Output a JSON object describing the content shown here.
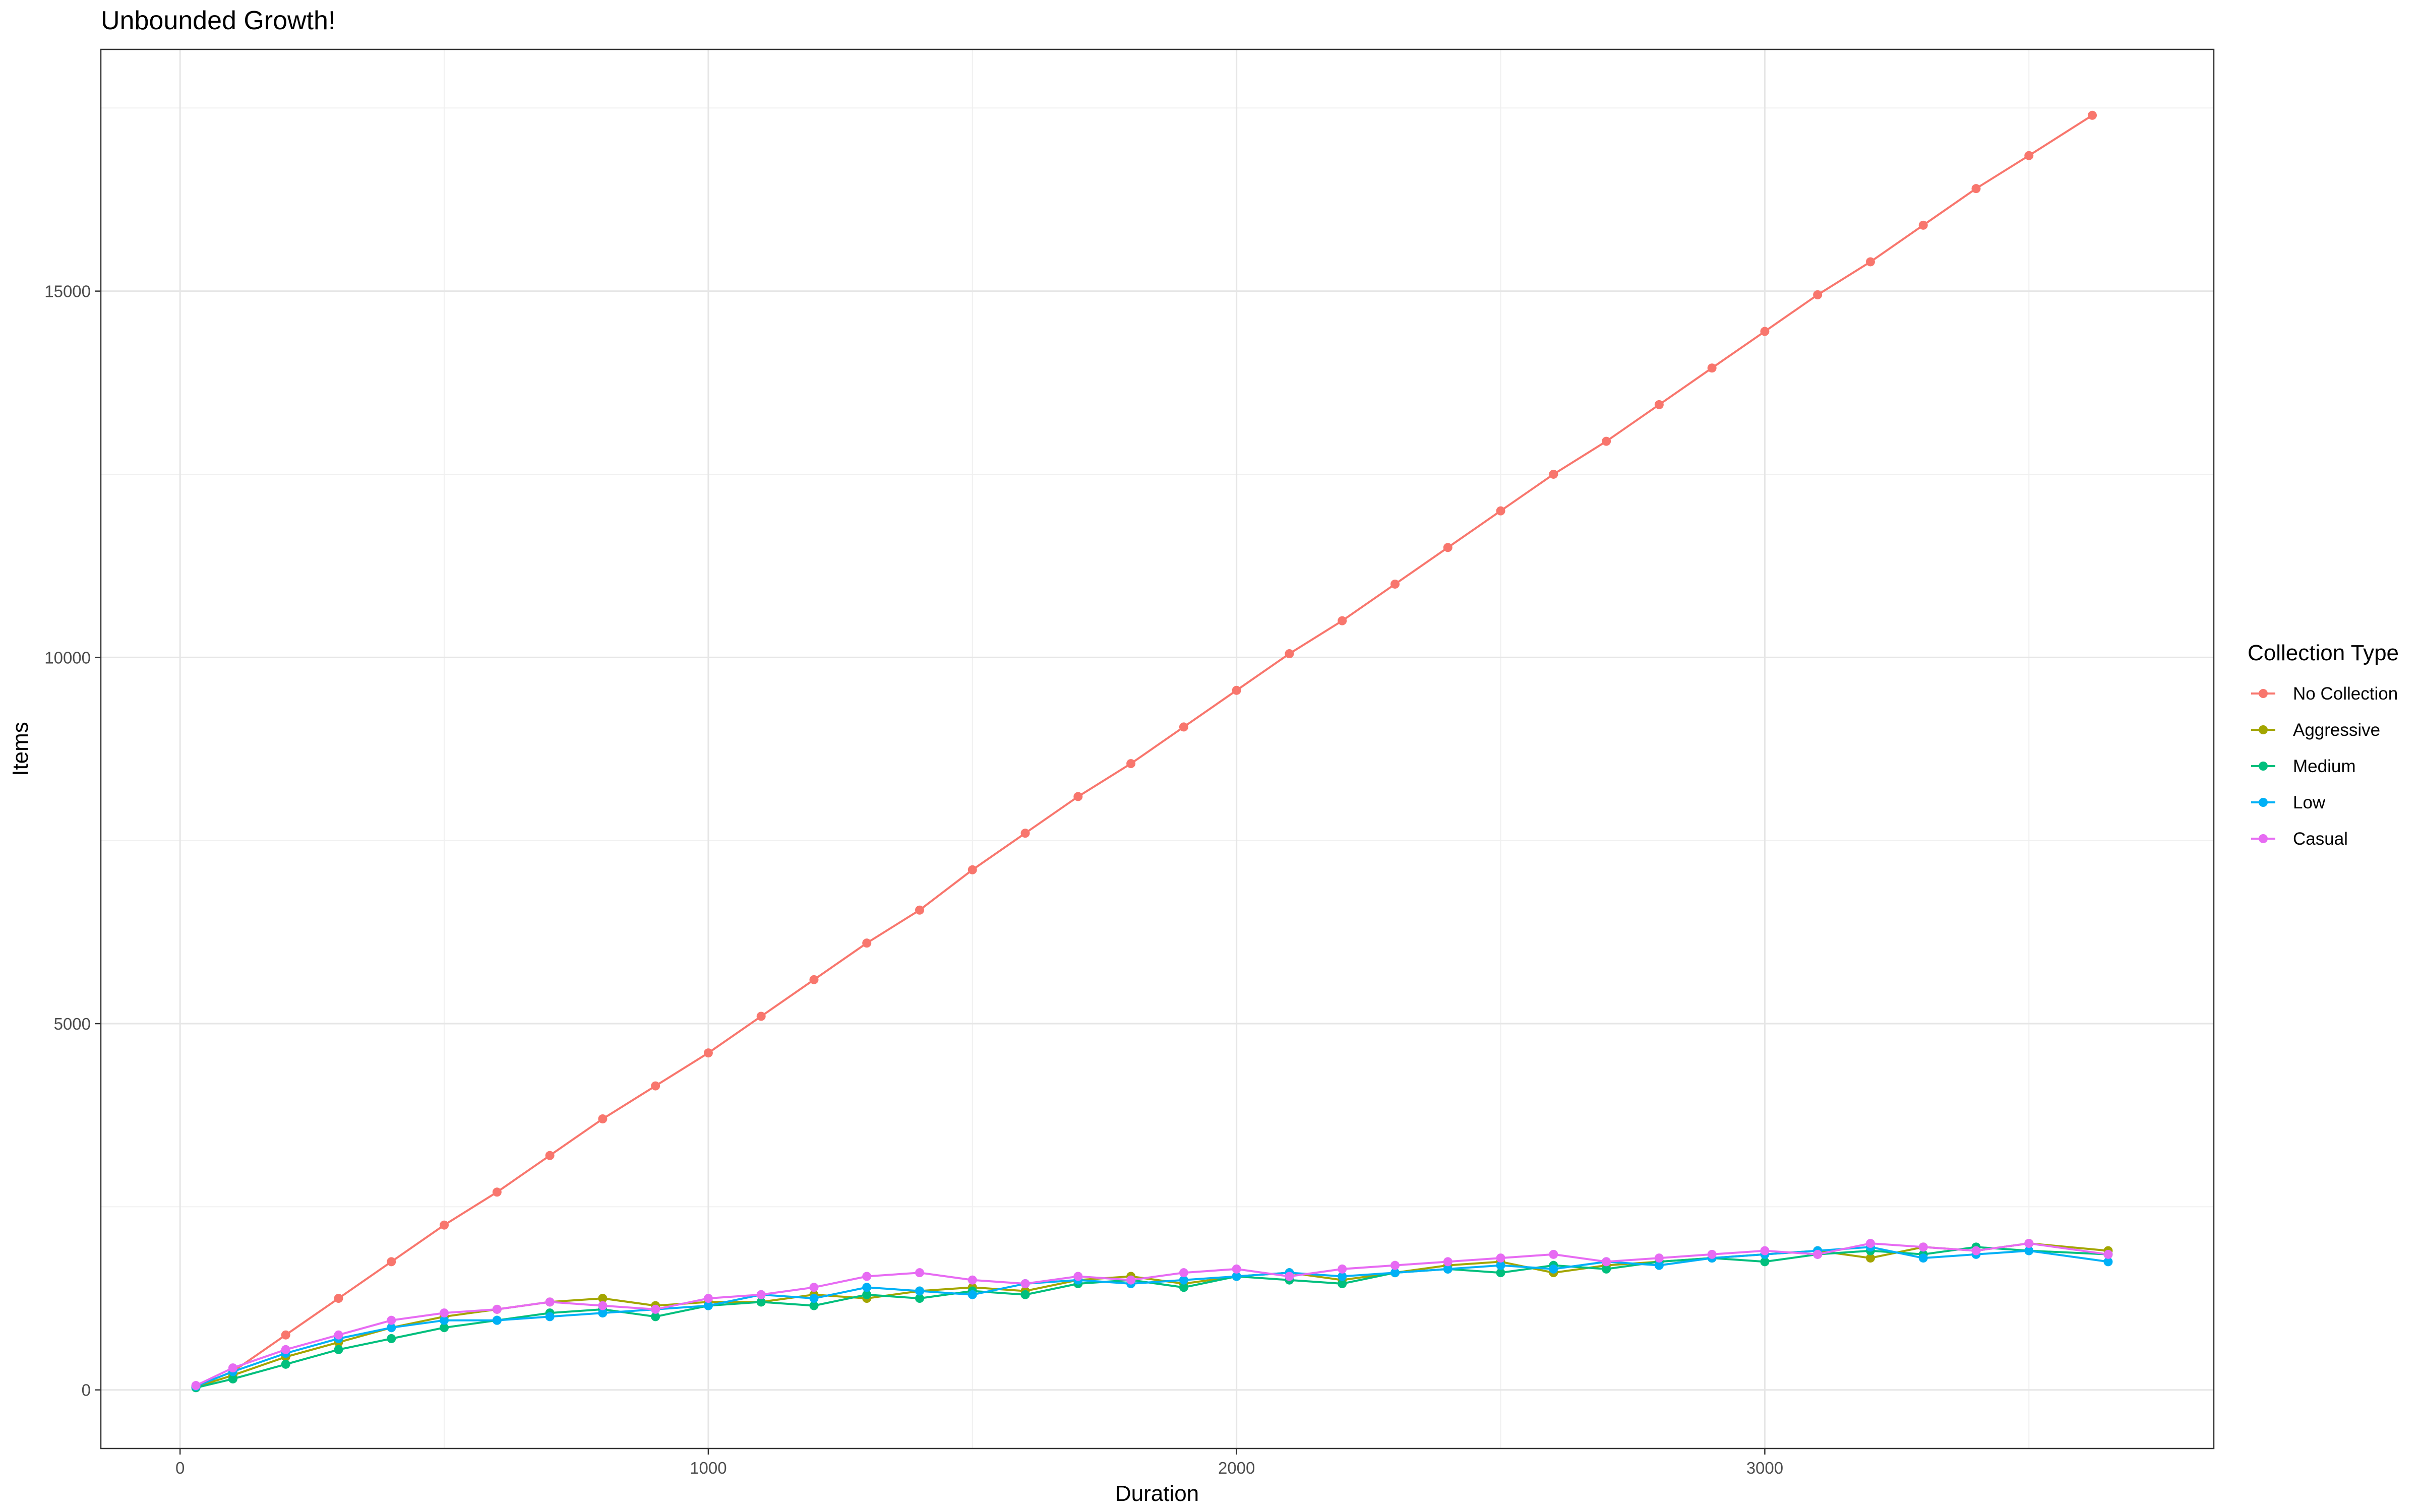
{
  "chart_data": {
    "type": "line",
    "title": "Unbounded Growth!",
    "xlabel": "Duration",
    "ylabel": "Items",
    "xlim": [
      -150,
      3850
    ],
    "ylim": [
      -800,
      18300
    ],
    "x_ticks": [
      0,
      1000,
      2000,
      3000
    ],
    "x_tick_labels": [
      "0",
      "1000",
      "2000",
      "3000"
    ],
    "y_ticks": [
      0,
      5000,
      10000,
      15000
    ],
    "y_tick_labels": [
      "0",
      "5000",
      "10000",
      "15000"
    ],
    "grid": true,
    "legend": {
      "title": "Collection Type",
      "position": "right"
    },
    "series": [
      {
        "name": "No Collection",
        "color": "#F8766D",
        "x": [
          30,
          100,
          200,
          300,
          400,
          500,
          600,
          700,
          800,
          900,
          1000,
          1100,
          1200,
          1300,
          1400,
          1500,
          1600,
          1700,
          1800,
          1900,
          2000,
          2100,
          2200,
          2300,
          2400,
          2500,
          2600,
          2700,
          2800,
          2900,
          3000,
          3100,
          3200,
          3300,
          3400,
          3500,
          3620
        ],
        "y": [
          50,
          250,
          750,
          1250,
          1750,
          2250,
          2700,
          3200,
          3700,
          4150,
          4600,
          5100,
          5600,
          6100,
          6550,
          7100,
          7600,
          8100,
          8550,
          9050,
          9550,
          10050,
          10500,
          11000,
          11500,
          12000,
          12500,
          12950,
          13450,
          13950,
          14450,
          14950,
          15400,
          15900,
          16400,
          16850,
          17400
        ]
      },
      {
        "name": "Aggressive",
        "color": "#A3A500",
        "x": [
          30,
          100,
          200,
          300,
          400,
          500,
          600,
          700,
          800,
          900,
          1000,
          1100,
          1200,
          1300,
          1400,
          1500,
          1600,
          1700,
          1800,
          1900,
          2000,
          2100,
          2200,
          2300,
          2400,
          2500,
          2600,
          2700,
          2800,
          2900,
          3000,
          3100,
          3200,
          3300,
          3400,
          3500,
          3650
        ],
        "y": [
          40,
          200,
          450,
          650,
          850,
          1000,
          1100,
          1200,
          1250,
          1150,
          1200,
          1200,
          1300,
          1250,
          1350,
          1400,
          1350,
          1500,
          1550,
          1450,
          1550,
          1600,
          1500,
          1600,
          1700,
          1750,
          1600,
          1700,
          1750,
          1800,
          1850,
          1900,
          1800,
          1950,
          1900,
          2000,
          1900
        ]
      },
      {
        "name": "Medium",
        "color": "#00BF7D",
        "x": [
          30,
          100,
          200,
          300,
          400,
          500,
          600,
          700,
          800,
          900,
          1000,
          1100,
          1200,
          1300,
          1400,
          1500,
          1600,
          1700,
          1800,
          1900,
          2000,
          2100,
          2200,
          2300,
          2400,
          2500,
          2600,
          2700,
          2800,
          2900,
          3000,
          3100,
          3200,
          3300,
          3400,
          3500,
          3650
        ],
        "y": [
          30,
          150,
          350,
          550,
          700,
          850,
          950,
          1050,
          1100,
          1000,
          1150,
          1200,
          1150,
          1300,
          1250,
          1350,
          1300,
          1450,
          1500,
          1400,
          1550,
          1500,
          1450,
          1600,
          1650,
          1600,
          1700,
          1650,
          1750,
          1800,
          1750,
          1850,
          1900,
          1850,
          1950,
          1900,
          1850
        ]
      },
      {
        "name": "Low",
        "color": "#00B0F6",
        "x": [
          30,
          100,
          200,
          300,
          400,
          500,
          600,
          700,
          800,
          900,
          1000,
          1100,
          1200,
          1300,
          1400,
          1500,
          1600,
          1700,
          1800,
          1900,
          2000,
          2100,
          2200,
          2300,
          2400,
          2500,
          2600,
          2700,
          2800,
          2900,
          3000,
          3100,
          3200,
          3300,
          3400,
          3500,
          3650
        ],
        "y": [
          50,
          250,
          500,
          700,
          850,
          950,
          950,
          1000,
          1050,
          1100,
          1150,
          1300,
          1250,
          1400,
          1350,
          1300,
          1450,
          1500,
          1450,
          1500,
          1550,
          1600,
          1550,
          1600,
          1650,
          1700,
          1650,
          1750,
          1700,
          1800,
          1850,
          1900,
          1950,
          1800,
          1850,
          1900,
          1750
        ]
      },
      {
        "name": "Casual",
        "color": "#E76BF3",
        "x": [
          30,
          100,
          200,
          300,
          400,
          500,
          600,
          700,
          800,
          900,
          1000,
          1100,
          1200,
          1300,
          1400,
          1500,
          1600,
          1700,
          1800,
          1900,
          2000,
          2100,
          2200,
          2300,
          2400,
          2500,
          2600,
          2700,
          2800,
          2900,
          3000,
          3100,
          3200,
          3300,
          3400,
          3500,
          3650
        ],
        "y": [
          60,
          300,
          550,
          750,
          950,
          1050,
          1100,
          1200,
          1150,
          1100,
          1250,
          1300,
          1400,
          1550,
          1600,
          1500,
          1450,
          1550,
          1500,
          1600,
          1650,
          1550,
          1650,
          1700,
          1750,
          1800,
          1850,
          1750,
          1800,
          1850,
          1900,
          1850,
          2000,
          1950,
          1900,
          2000,
          1850
        ]
      }
    ]
  }
}
